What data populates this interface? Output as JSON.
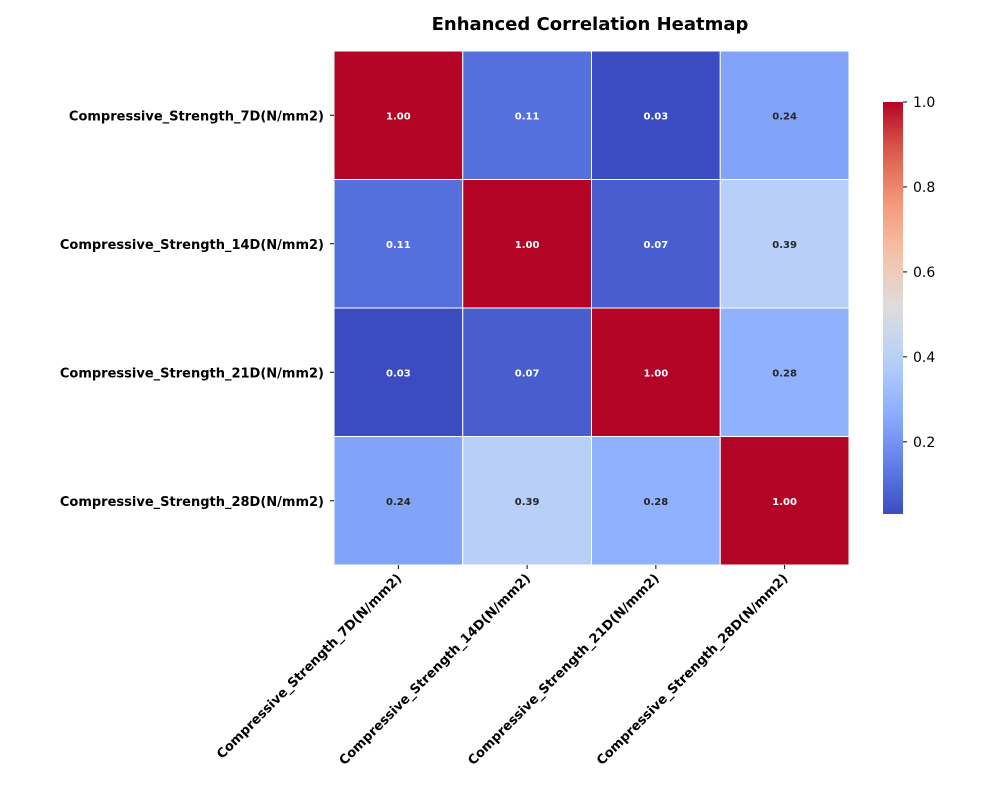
{
  "chart_data": {
    "type": "heatmap",
    "title": "Enhanced Correlation Heatmap",
    "xlabel": "",
    "ylabel": "",
    "row_labels": [
      "Compressive_Strength_7D(N/mm2)",
      "Compressive_Strength_14D(N/mm2)",
      "Compressive_Strength_21D(N/mm2)",
      "Compressive_Strength_28D(N/mm2)"
    ],
    "col_labels": [
      "Compressive_Strength_7D(N/mm2)",
      "Compressive_Strength_14D(N/mm2)",
      "Compressive_Strength_21D(N/mm2)",
      "Compressive_Strength_28D(N/mm2)"
    ],
    "values": [
      [
        1.0,
        0.11,
        0.03,
        0.24
      ],
      [
        0.11,
        1.0,
        0.07,
        0.39
      ],
      [
        0.03,
        0.07,
        1.0,
        0.28
      ],
      [
        0.24,
        0.39,
        0.28,
        1.0
      ]
    ],
    "value_format": "0.00",
    "colormap": "coolwarm",
    "colorbar": {
      "range": [
        0.03,
        1.0
      ],
      "ticks": [
        0.2,
        0.4,
        0.6,
        0.8,
        1.0
      ],
      "tick_labels": [
        "0.2",
        "0.4",
        "0.6",
        "0.8",
        "1.0"
      ],
      "position": "right"
    },
    "grid": false,
    "cell_border_color": "#ffffff"
  }
}
